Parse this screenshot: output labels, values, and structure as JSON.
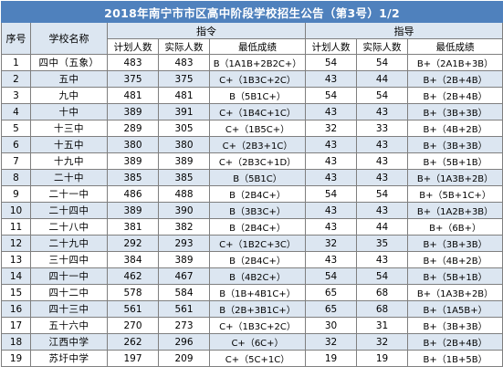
{
  "title": "2018年南宁市市区高中阶段学校招生公告（第3号）1/2",
  "headers": {
    "seq": "序号",
    "school": "学校名称",
    "directive": "指令",
    "guidance": "指导",
    "plan": "计划人数",
    "actual": "实际人数",
    "min_score": "最低成绩"
  },
  "rows": [
    {
      "no": "1",
      "name": "四中（五象）",
      "d_plan": "483",
      "d_actual": "483",
      "d_min": "B（1A1B+2B2C+）",
      "g_plan": "54",
      "g_actual": "54",
      "g_min": "B+（2A1B+3B）"
    },
    {
      "no": "2",
      "name": "五中",
      "d_plan": "375",
      "d_actual": "375",
      "d_min": "C+（1B3C+2C）",
      "g_plan": "43",
      "g_actual": "44",
      "g_min": "B+（2B+4B）"
    },
    {
      "no": "3",
      "name": "九中",
      "d_plan": "481",
      "d_actual": "481",
      "d_min": "B（5B1C+）",
      "g_plan": "54",
      "g_actual": "54",
      "g_min": "B+（2B+4B）"
    },
    {
      "no": "4",
      "name": "十中",
      "d_plan": "389",
      "d_actual": "391",
      "d_min": "C+（1B4C+1C）",
      "g_plan": "43",
      "g_actual": "43",
      "g_min": "B+（3B+3B）"
    },
    {
      "no": "5",
      "name": "十三中",
      "d_plan": "289",
      "d_actual": "305",
      "d_min": "C+（1B5C+）",
      "g_plan": "32",
      "g_actual": "33",
      "g_min": "B+（4B+2B）"
    },
    {
      "no": "6",
      "name": "十五中",
      "d_plan": "380",
      "d_actual": "380",
      "d_min": "C+（2B3+1C）",
      "g_plan": "43",
      "g_actual": "43",
      "g_min": "B+（3B+3B）"
    },
    {
      "no": "7",
      "name": "十九中",
      "d_plan": "389",
      "d_actual": "389",
      "d_min": "C+（2B3C+1D）",
      "g_plan": "43",
      "g_actual": "43",
      "g_min": "B+（5B+1B）"
    },
    {
      "no": "8",
      "name": "二十中",
      "d_plan": "385",
      "d_actual": "385",
      "d_min": "B（5B1C）",
      "g_plan": "43",
      "g_actual": "43",
      "g_min": "B+（1A3B+2B）"
    },
    {
      "no": "9",
      "name": "二十一中",
      "d_plan": "486",
      "d_actual": "488",
      "d_min": "B（2B4C+）",
      "g_plan": "54",
      "g_actual": "54",
      "g_min": "B+（5B+1C+）"
    },
    {
      "no": "10",
      "name": "二十四中",
      "d_plan": "389",
      "d_actual": "390",
      "d_min": "B（3B3C+）",
      "g_plan": "43",
      "g_actual": "43",
      "g_min": "B+（1A2B+3B）"
    },
    {
      "no": "11",
      "name": "二十八中",
      "d_plan": "381",
      "d_actual": "382",
      "d_min": "B（2B4C+）",
      "g_plan": "43",
      "g_actual": "44",
      "g_min": "B+（6B+）"
    },
    {
      "no": "12",
      "name": "二十九中",
      "d_plan": "292",
      "d_actual": "293",
      "d_min": "C+（1B2C+3C）",
      "g_plan": "32",
      "g_actual": "35",
      "g_min": "B+（3B+3B）"
    },
    {
      "no": "13",
      "name": "三十四中",
      "d_plan": "384",
      "d_actual": "389",
      "d_min": "B（2B4C+）",
      "g_plan": "43",
      "g_actual": "43",
      "g_min": "B+（4B+2B）"
    },
    {
      "no": "14",
      "name": "四十一中",
      "d_plan": "462",
      "d_actual": "467",
      "d_min": "B（4B2C+）",
      "g_plan": "54",
      "g_actual": "54",
      "g_min": "B+（5B+1B）"
    },
    {
      "no": "15",
      "name": "四十二中",
      "d_plan": "578",
      "d_actual": "584",
      "d_min": "B（1B+4B1C+）",
      "g_plan": "65",
      "g_actual": "68",
      "g_min": "B+（1A3B+2B）"
    },
    {
      "no": "16",
      "name": "四十三中",
      "d_plan": "561",
      "d_actual": "561",
      "d_min": "B（2B+3B1C+）",
      "g_plan": "65",
      "g_actual": "68",
      "g_min": "B+（1A5B+）"
    },
    {
      "no": "17",
      "name": "五十六中",
      "d_plan": "270",
      "d_actual": "273",
      "d_min": "C+（1B3C+2C）",
      "g_plan": "30",
      "g_actual": "31",
      "g_min": "B+（3B+3B）"
    },
    {
      "no": "18",
      "name": "江西中学",
      "d_plan": "262",
      "d_actual": "296",
      "d_min": "C+（6C+）",
      "g_plan": "32",
      "g_actual": "32",
      "g_min": "B+（2B+4B）"
    },
    {
      "no": "19",
      "name": "苏圩中学",
      "d_plan": "197",
      "d_actual": "209",
      "d_min": "C+（5C+1C）",
      "g_plan": "19",
      "g_actual": "19",
      "g_min": "B+（1B+5B）"
    }
  ]
}
